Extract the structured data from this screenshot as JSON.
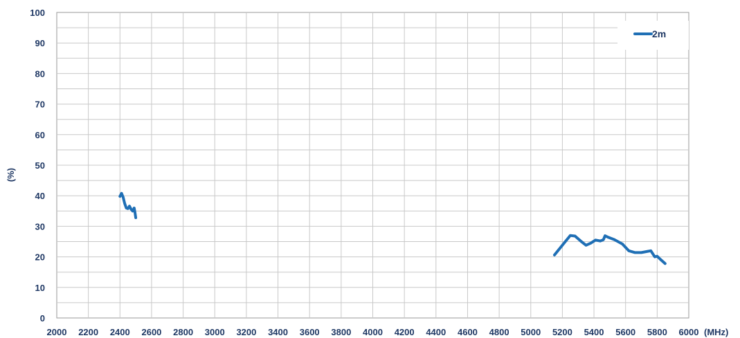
{
  "chart_data": {
    "type": "line",
    "title": "",
    "xlabel": "(MHz)",
    "ylabel": "(%)",
    "xlim": [
      2000,
      6000
    ],
    "ylim": [
      0,
      100
    ],
    "grid": true,
    "legend_position": "top-right",
    "colors": {
      "series": "#1f6fb5",
      "text": "#1f3864",
      "grid": "#c8c8c8"
    },
    "x_ticks": [
      "2000",
      "2200",
      "2400",
      "2600",
      "2800",
      "3000",
      "3200",
      "3400",
      "3600",
      "3800",
      "4000",
      "4200",
      "4400",
      "4600",
      "4800",
      "5000",
      "5200",
      "5400",
      "5600",
      "5800",
      "6000"
    ],
    "y_ticks": [
      "0",
      "10",
      "20",
      "30",
      "40",
      "50",
      "60",
      "70",
      "80",
      "90",
      "100"
    ],
    "series": [
      {
        "name": "2m",
        "segments": [
          [
            [
              2400,
              39.8
            ],
            [
              2410,
              40.8
            ],
            [
              2420,
              39.5
            ],
            [
              2430,
              37.5
            ],
            [
              2440,
              36.0
            ],
            [
              2450,
              35.8
            ],
            [
              2460,
              36.6
            ],
            [
              2470,
              35.6
            ],
            [
              2480,
              35.0
            ],
            [
              2490,
              36.0
            ],
            [
              2495,
              34.5
            ],
            [
              2500,
              32.8
            ]
          ],
          [
            [
              5150,
              20.6
            ],
            [
              5200,
              23.8
            ],
            [
              5250,
              27.0
            ],
            [
              5280,
              26.8
            ],
            [
              5320,
              25.0
            ],
            [
              5350,
              23.8
            ],
            [
              5380,
              24.5
            ],
            [
              5410,
              25.5
            ],
            [
              5440,
              25.2
            ],
            [
              5460,
              25.6
            ],
            [
              5470,
              26.9
            ],
            [
              5490,
              26.4
            ],
            [
              5530,
              25.6
            ],
            [
              5580,
              24.2
            ],
            [
              5620,
              22.0
            ],
            [
              5660,
              21.4
            ],
            [
              5700,
              21.4
            ],
            [
              5740,
              21.8
            ],
            [
              5760,
              22.0
            ],
            [
              5785,
              20.0
            ],
            [
              5800,
              20.2
            ],
            [
              5820,
              19.2
            ],
            [
              5850,
              17.8
            ]
          ]
        ]
      }
    ]
  }
}
